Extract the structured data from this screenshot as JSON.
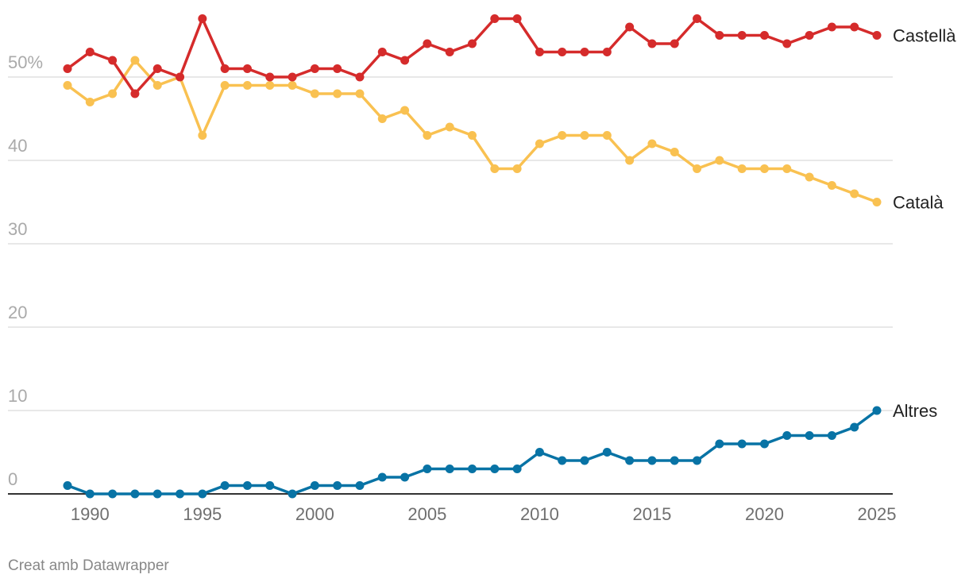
{
  "chart_data": {
    "type": "line",
    "x": [
      1989,
      1990,
      1991,
      1992,
      1993,
      1994,
      1995,
      1996,
      1997,
      1998,
      1999,
      2000,
      2001,
      2002,
      2003,
      2004,
      2005,
      2006,
      2007,
      2008,
      2009,
      2010,
      2011,
      2012,
      2013,
      2014,
      2015,
      2016,
      2017,
      2018,
      2019,
      2020,
      2021,
      2022,
      2023,
      2024,
      2025
    ],
    "series": [
      {
        "name": "Castellà",
        "color": "#d52b2b",
        "values": [
          51,
          53,
          52,
          48,
          51,
          50,
          57,
          51,
          51,
          50,
          50,
          51,
          51,
          50,
          53,
          52,
          54,
          53,
          54,
          57,
          57,
          53,
          53,
          53,
          53,
          56,
          54,
          54,
          57,
          55,
          55,
          55,
          54,
          55,
          56,
          56,
          55
        ]
      },
      {
        "name": "Català",
        "color": "#f9c151",
        "values": [
          49,
          47,
          48,
          52,
          49,
          50,
          43,
          49,
          49,
          49,
          49,
          48,
          48,
          48,
          45,
          46,
          43,
          44,
          43,
          39,
          39,
          42,
          43,
          43,
          43,
          40,
          42,
          41,
          39,
          40,
          39,
          39,
          39,
          38,
          37,
          36,
          35
        ]
      },
      {
        "name": "Altres",
        "color": "#0873a5",
        "values": [
          1,
          0,
          0,
          0,
          0,
          0,
          0,
          1,
          1,
          1,
          0,
          1,
          1,
          1,
          2,
          2,
          3,
          3,
          3,
          3,
          3,
          5,
          4,
          4,
          5,
          4,
          4,
          4,
          4,
          6,
          6,
          6,
          7,
          7,
          7,
          8,
          10
        ]
      }
    ],
    "y_ticks": [
      "0",
      "10",
      "20",
      "30",
      "40",
      "50%"
    ],
    "y_tick_values": [
      0,
      10,
      20,
      30,
      40,
      50
    ],
    "x_ticks": [
      "1990",
      "1995",
      "2000",
      "2005",
      "2010",
      "2015",
      "2020",
      "2025"
    ],
    "x_tick_values": [
      1990,
      1995,
      2000,
      2005,
      2010,
      2015,
      2020,
      2025
    ],
    "xlim": [
      1989,
      2025
    ],
    "ylim": [
      0,
      58
    ],
    "grid": true,
    "legend": "direct labels at line ends"
  },
  "credit": "Creat amb Datawrapper"
}
